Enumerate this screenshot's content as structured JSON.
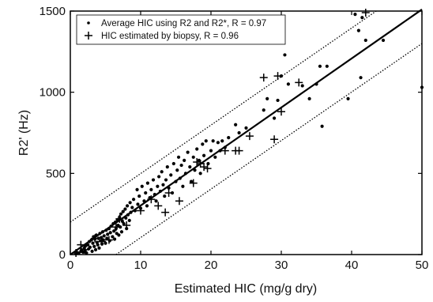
{
  "chart_data": {
    "type": "scatter",
    "xlabel": "Estimated HIC (mg/g dry)",
    "ylabel": "R2' (Hz)",
    "xlim": [
      0,
      50
    ],
    "ylim": [
      0,
      1500
    ],
    "x_ticks": [
      0,
      10,
      20,
      30,
      40,
      50
    ],
    "y_ticks": [
      0,
      500,
      1000,
      1500
    ],
    "x_tick_labels": [
      "0",
      "10",
      "20",
      "30",
      "40",
      "50"
    ],
    "y_tick_labels": [
      "0",
      "500",
      "1000",
      "1500"
    ],
    "grid": false,
    "legend_position": "top-left",
    "series": [
      {
        "name": "Average HIC using R2 and R2*, R = 0.97",
        "marker": "dot",
        "color": "#000000",
        "points": [
          [
            0.8,
            5
          ],
          [
            1.0,
            12
          ],
          [
            1.2,
            8
          ],
          [
            1.5,
            20
          ],
          [
            1.6,
            30
          ],
          [
            1.8,
            15
          ],
          [
            2.0,
            40
          ],
          [
            2.1,
            25
          ],
          [
            2.2,
            55
          ],
          [
            2.3,
            10
          ],
          [
            2.5,
            60
          ],
          [
            2.6,
            35
          ],
          [
            2.7,
            80
          ],
          [
            2.8,
            45
          ],
          [
            3.0,
            90
          ],
          [
            3.1,
            20
          ],
          [
            3.2,
            70
          ],
          [
            3.3,
            110
          ],
          [
            3.4,
            50
          ],
          [
            3.5,
            95
          ],
          [
            3.6,
            30
          ],
          [
            3.7,
            120
          ],
          [
            3.8,
            75
          ],
          [
            3.9,
            60
          ],
          [
            4.0,
            100
          ],
          [
            4.1,
            40
          ],
          [
            4.2,
            130
          ],
          [
            4.3,
            85
          ],
          [
            4.4,
            105
          ],
          [
            4.5,
            65
          ],
          [
            4.6,
            140
          ],
          [
            4.7,
            90
          ],
          [
            4.8,
            115
          ],
          [
            5.0,
            70
          ],
          [
            5.1,
            150
          ],
          [
            5.2,
            100
          ],
          [
            5.3,
            125
          ],
          [
            5.5,
            160
          ],
          [
            5.6,
            85
          ],
          [
            5.7,
            135
          ],
          [
            5.8,
            175
          ],
          [
            6.0,
            110
          ],
          [
            6.1,
            190
          ],
          [
            6.2,
            145
          ],
          [
            6.3,
            95
          ],
          [
            6.4,
            200
          ],
          [
            6.5,
            160
          ],
          [
            6.6,
            130
          ],
          [
            6.7,
            215
          ],
          [
            6.8,
            180
          ],
          [
            6.9,
            120
          ],
          [
            7.0,
            230
          ],
          [
            7.1,
            170
          ],
          [
            7.2,
            250
          ],
          [
            7.3,
            140
          ],
          [
            7.4,
            205
          ],
          [
            7.5,
            265
          ],
          [
            7.6,
            190
          ],
          [
            7.8,
            280
          ],
          [
            7.9,
            225
          ],
          [
            8.0,
            160
          ],
          [
            8.1,
            300
          ],
          [
            8.2,
            245
          ],
          [
            8.4,
            210
          ],
          [
            8.5,
            320
          ],
          [
            8.6,
            260
          ],
          [
            8.8,
            290
          ],
          [
            9.0,
            340
          ],
          [
            9.2,
            270
          ],
          [
            9.5,
            400
          ],
          [
            9.6,
            310
          ],
          [
            9.8,
            360
          ],
          [
            10.0,
            285
          ],
          [
            10.2,
            420
          ],
          [
            10.5,
            330
          ],
          [
            10.7,
            380
          ],
          [
            10.9,
            300
          ],
          [
            11.0,
            440
          ],
          [
            11.3,
            350
          ],
          [
            11.5,
            400
          ],
          [
            11.8,
            460
          ],
          [
            12.0,
            370
          ],
          [
            12.2,
            330
          ],
          [
            12.4,
            420
          ],
          [
            12.6,
            480
          ],
          [
            12.8,
            390
          ],
          [
            13.0,
            510
          ],
          [
            13.2,
            430
          ],
          [
            13.4,
            360
          ],
          [
            13.6,
            460
          ],
          [
            13.8,
            540
          ],
          [
            14.0,
            410
          ],
          [
            14.3,
            490
          ],
          [
            14.5,
            380
          ],
          [
            14.7,
            560
          ],
          [
            15.0,
            450
          ],
          [
            15.2,
            520
          ],
          [
            15.4,
            600
          ],
          [
            15.6,
            470
          ],
          [
            15.8,
            550
          ],
          [
            16.0,
            420
          ],
          [
            16.2,
            580
          ],
          [
            16.4,
            500
          ],
          [
            16.7,
            630
          ],
          [
            17.0,
            540
          ],
          [
            17.2,
            450
          ],
          [
            17.5,
            600
          ],
          [
            17.7,
            520
          ],
          [
            18.0,
            650
          ],
          [
            18.3,
            580
          ],
          [
            18.5,
            500
          ],
          [
            18.8,
            680
          ],
          [
            19.0,
            610
          ],
          [
            19.3,
            700
          ],
          [
            19.6,
            560
          ],
          [
            20.0,
            640
          ],
          [
            20.3,
            700
          ],
          [
            20.6,
            600
          ],
          [
            21.0,
            690
          ],
          [
            21.3,
            640
          ],
          [
            21.6,
            700
          ],
          [
            22.0,
            660
          ],
          [
            22.5,
            720
          ],
          [
            23.5,
            800
          ],
          [
            24.0,
            750
          ],
          [
            25.0,
            780
          ],
          [
            27.5,
            890
          ],
          [
            28.0,
            960
          ],
          [
            29.0,
            840
          ],
          [
            29.5,
            950
          ],
          [
            30.0,
            1100
          ],
          [
            30.5,
            1230
          ],
          [
            31.0,
            1050
          ],
          [
            33.0,
            1040
          ],
          [
            34.0,
            960
          ],
          [
            35.0,
            1050
          ],
          [
            35.5,
            1160
          ],
          [
            35.8,
            790
          ],
          [
            36.5,
            1160
          ],
          [
            39.5,
            960
          ],
          [
            40.5,
            1480
          ],
          [
            41.0,
            1380
          ],
          [
            41.3,
            1090
          ],
          [
            41.5,
            1460
          ],
          [
            42.0,
            1320
          ],
          [
            44.5,
            1320
          ],
          [
            50.0,
            1030
          ]
        ]
      },
      {
        "name": "HIC estimated by biopsy, R = 0.96",
        "marker": "plus",
        "color": "#000000",
        "points": [
          [
            0.8,
            10
          ],
          [
            1.5,
            60
          ],
          [
            2.0,
            30
          ],
          [
            3.5,
            100
          ],
          [
            4.5,
            80
          ],
          [
            5.5,
            90
          ],
          [
            6.5,
            170
          ],
          [
            7.0,
            220
          ],
          [
            8.0,
            180
          ],
          [
            10.0,
            270
          ],
          [
            11.5,
            340
          ],
          [
            12.5,
            300
          ],
          [
            13.5,
            260
          ],
          [
            14.0,
            380
          ],
          [
            15.5,
            330
          ],
          [
            17.5,
            440
          ],
          [
            18.0,
            570
          ],
          [
            18.5,
            560
          ],
          [
            19.0,
            540
          ],
          [
            19.5,
            530
          ],
          [
            22.0,
            640
          ],
          [
            23.5,
            640
          ],
          [
            24.0,
            640
          ],
          [
            25.5,
            730
          ],
          [
            27.5,
            1090
          ],
          [
            29.0,
            710
          ],
          [
            29.5,
            1100
          ],
          [
            30.0,
            880
          ],
          [
            32.5,
            1060
          ],
          [
            42.0,
            1490
          ]
        ]
      }
    ],
    "fit_lines": [
      {
        "style": "solid",
        "from": [
          0,
          0
        ],
        "to": [
          50,
          1510
        ]
      },
      {
        "style": "dotted",
        "from": [
          0,
          200
        ],
        "to": [
          43.5,
          1500
        ]
      },
      {
        "style": "dotted",
        "from": [
          6.5,
          0
        ],
        "to": [
          50,
          1300
        ]
      }
    ]
  }
}
